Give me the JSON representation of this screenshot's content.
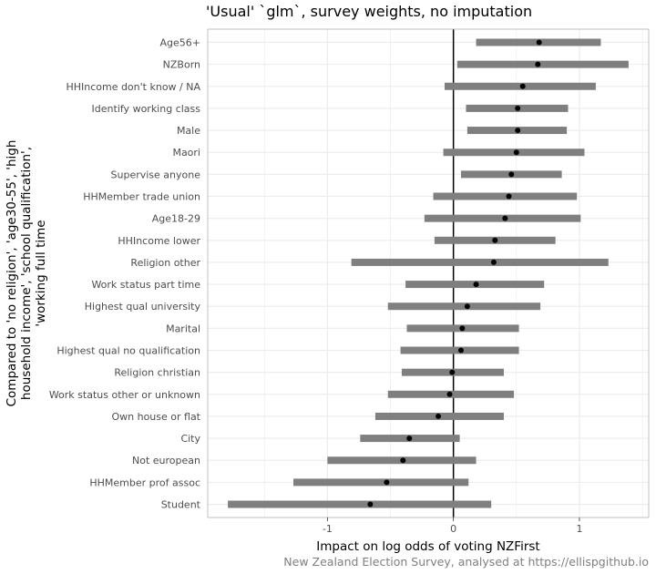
{
  "chart_data": {
    "type": "interval",
    "title": "'Usual' `glm`, survey weights, no imputation",
    "xlabel": "Impact on log odds of voting NZFirst",
    "ylabel_lines": [
      "Compared to 'no religion', 'age30-55', 'high",
      "household income', 'school qualification',",
      "'working full time"
    ],
    "caption": "New Zealand Election Survey, analysed at https://ellispgithub.io",
    "xlim": [
      -1.95,
      1.55
    ],
    "xticks": [
      -1,
      0,
      1
    ],
    "xtick_labels": [
      "-1",
      "0",
      "1"
    ],
    "reference_line": 0,
    "grid": true,
    "colors": {
      "interval": "#7f7f7f",
      "point": "#000000",
      "grid": "#ebebeb",
      "zero_line": "#000000",
      "panel_border": "#b3b3b3"
    },
    "categories": [
      "Age56+",
      "NZBorn",
      "HHIncome don't know / NA",
      "Identify working class",
      "Male",
      "Maori",
      "Supervise anyone",
      "HHMember trade union",
      "Age18-29",
      "HHIncome lower",
      "Religion other",
      "Work status part time",
      "Highest qual university",
      "Marital",
      "Highest qual no qualification",
      "Religion christian",
      "Work status other or unknown",
      "Own house or flat",
      "City",
      "Not european",
      "HHMember prof assoc",
      "Student"
    ],
    "estimates": [
      0.68,
      0.67,
      0.55,
      0.51,
      0.51,
      0.5,
      0.46,
      0.44,
      0.41,
      0.33,
      0.32,
      0.18,
      0.11,
      0.07,
      0.06,
      -0.01,
      -0.03,
      -0.12,
      -0.35,
      -0.4,
      -0.53,
      -0.66
    ],
    "lower": [
      0.18,
      0.03,
      -0.07,
      0.1,
      0.11,
      -0.08,
      0.06,
      -0.16,
      -0.23,
      -0.15,
      -0.81,
      -0.38,
      -0.52,
      -0.37,
      -0.42,
      -0.41,
      -0.52,
      -0.62,
      -0.74,
      -1.0,
      -1.27,
      -1.79
    ],
    "upper": [
      1.17,
      1.39,
      1.13,
      0.91,
      0.9,
      1.04,
      0.86,
      0.98,
      1.01,
      0.81,
      1.23,
      0.72,
      0.69,
      0.52,
      0.52,
      0.4,
      0.48,
      0.4,
      0.05,
      0.18,
      0.12,
      0.3
    ]
  }
}
